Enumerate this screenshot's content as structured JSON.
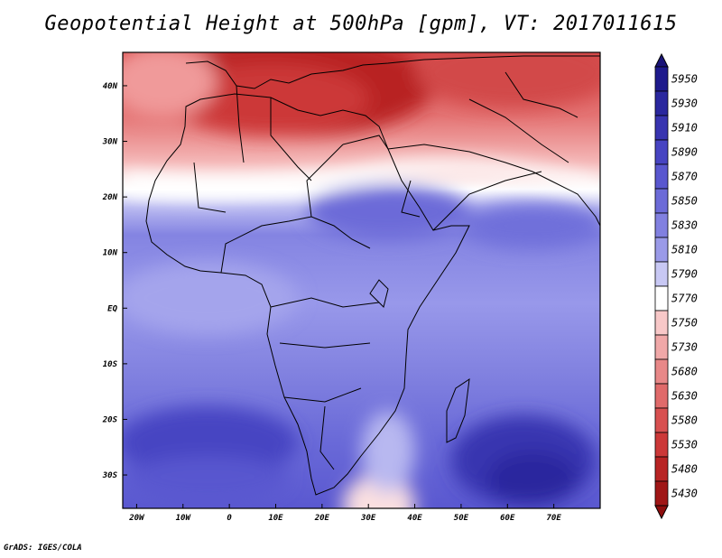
{
  "title": "Geopotential Height at 500hPa [gpm], VT: 2017011615",
  "credit": "GrADS: IGES/COLA",
  "map": {
    "region": "Africa and surrounding area",
    "lon_range": [
      -23,
      80
    ],
    "lat_range": [
      -36,
      46
    ],
    "lat_ticks": [
      {
        "value": 40,
        "label": "40N"
      },
      {
        "value": 30,
        "label": "30N"
      },
      {
        "value": 20,
        "label": "20N"
      },
      {
        "value": 10,
        "label": "10N"
      },
      {
        "value": 0,
        "label": "EQ"
      },
      {
        "value": -10,
        "label": "10S"
      },
      {
        "value": -20,
        "label": "20S"
      },
      {
        "value": -30,
        "label": "30S"
      }
    ],
    "lon_ticks": [
      {
        "value": -20,
        "label": "20W"
      },
      {
        "value": -10,
        "label": "10W"
      },
      {
        "value": 0,
        "label": "0"
      },
      {
        "value": 10,
        "label": "10E"
      },
      {
        "value": 20,
        "label": "20E"
      },
      {
        "value": 30,
        "label": "30E"
      },
      {
        "value": 40,
        "label": "40E"
      },
      {
        "value": 50,
        "label": "50E"
      },
      {
        "value": 60,
        "label": "60E"
      },
      {
        "value": 70,
        "label": "70E"
      }
    ]
  },
  "colorbar": {
    "levels": [
      {
        "label": "5950",
        "color": "#1e1a8c"
      },
      {
        "label": "5930",
        "color": "#2a279e"
      },
      {
        "label": "5910",
        "color": "#3834b0"
      },
      {
        "label": "5890",
        "color": "#4744c2"
      },
      {
        "label": "5870",
        "color": "#5957cf"
      },
      {
        "label": "5850",
        "color": "#6c6bd8"
      },
      {
        "label": "5830",
        "color": "#8180e0"
      },
      {
        "label": "5810",
        "color": "#9a9ae8"
      },
      {
        "label": "5790",
        "color": "#c8c8f4"
      },
      {
        "label": "5770",
        "color": "#ffffff"
      },
      {
        "label": "5750",
        "color": "#f8c8c8"
      },
      {
        "label": "5730",
        "color": "#f0a8a8"
      },
      {
        "label": "5680",
        "color": "#e88888"
      },
      {
        "label": "5630",
        "color": "#e06a6a"
      },
      {
        "label": "5580",
        "color": "#d85050"
      },
      {
        "label": "5530",
        "color": "#cc3838"
      },
      {
        "label": "5480",
        "color": "#b82424"
      },
      {
        "label": "5430",
        "color": "#a01616"
      }
    ],
    "top_arrow_color": "#1a1478",
    "bottom_arrow_color": "#8e0e0e"
  }
}
